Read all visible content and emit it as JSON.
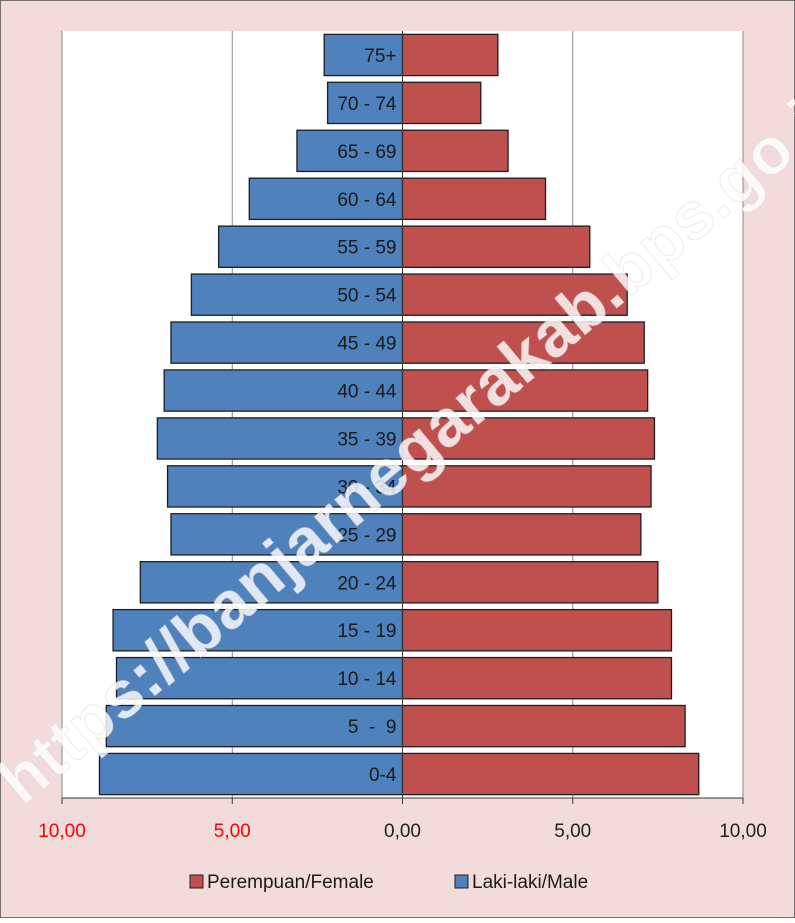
{
  "chart_data": {
    "type": "bar",
    "orientation": "horizontal",
    "layout": "population-pyramid",
    "categories": [
      "0-4",
      "5  -  9",
      "10 - 14",
      "15 - 19",
      "20 - 24",
      "25 - 29",
      "30 - 34",
      "35 - 39",
      "40 - 44",
      "45 - 49",
      "50 - 54",
      "55 - 59",
      "60 - 64",
      "65 - 69",
      "70 - 74",
      "75+"
    ],
    "series": [
      {
        "name": "Laki-laki/Male",
        "side": "left",
        "color": "#4f81bd",
        "values": [
          8.9,
          8.7,
          8.4,
          8.5,
          7.7,
          6.8,
          6.9,
          7.2,
          7.0,
          6.8,
          6.2,
          5.4,
          4.5,
          3.1,
          2.2,
          2.3
        ]
      },
      {
        "name": "Perempuan/Female",
        "side": "right",
        "color": "#c0504d",
        "values": [
          8.7,
          8.3,
          7.9,
          7.9,
          7.5,
          7.0,
          7.3,
          7.4,
          7.2,
          7.1,
          6.6,
          5.5,
          4.2,
          3.1,
          2.3,
          2.8
        ]
      }
    ],
    "xlim": [
      -10,
      10
    ],
    "xticks": [
      -10,
      -5,
      0,
      5,
      10
    ],
    "xtick_labels": [
      "10,00",
      "5,00",
      "0,00",
      "5,00",
      "10,00"
    ],
    "xtick_label_colors": [
      "#ff0000",
      "#ff0000",
      "#222222",
      "#222222",
      "#222222"
    ],
    "grid": true,
    "legend_position": "bottom",
    "legend": [
      "Perempuan/Female",
      "Laki-laki/Male"
    ],
    "background_color": "#f2dcdb",
    "plot_background_color": "#ffffff",
    "watermark": "https://banjarnegarakab.bps.go.id"
  }
}
